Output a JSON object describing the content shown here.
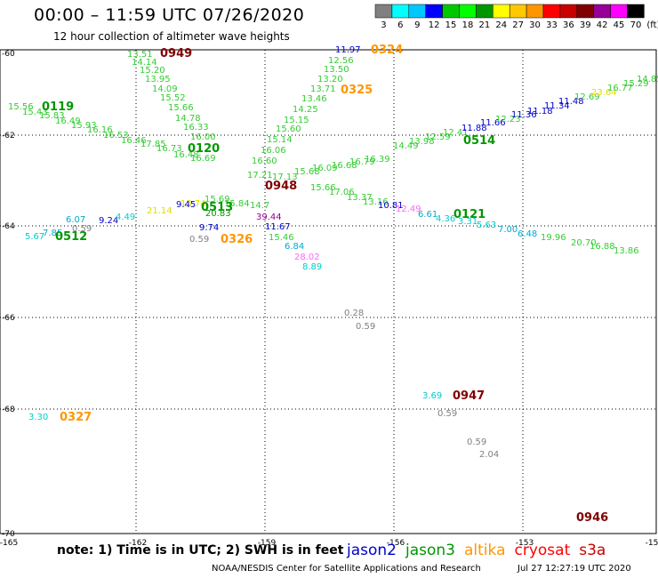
{
  "header": {
    "title": "00:00 – 11:59 UTC 07/26/2020",
    "subtitle": "12 hour collection of altimeter wave heights"
  },
  "colorbar": {
    "unit": "(ft)",
    "labels": [
      "3",
      "6",
      "9",
      "12",
      "15",
      "18",
      "21",
      "24",
      "27",
      "30",
      "33",
      "36",
      "39",
      "42",
      "45",
      "70"
    ],
    "colors": [
      "#808080",
      "#00ffff",
      "#00c8ff",
      "#0000ff",
      "#00c800",
      "#00ff00",
      "#009600",
      "#ffff00",
      "#ffc800",
      "#ff9600",
      "#ff0000",
      "#c80000",
      "#800000",
      "#960096",
      "#ff00ff",
      "#000000"
    ]
  },
  "axes": {
    "lon_ticks": [
      "-165",
      "-162",
      "-159",
      "-156",
      "-153",
      "-15"
    ],
    "lat_ticks": [
      "-60",
      "-62",
      "-64",
      "-66",
      "-68",
      "-70"
    ]
  },
  "footer": {
    "note": "note:  1) Time is in UTC;  2) SWH is in feet",
    "credit": "NOAA/NESDIS Center for Satellite Applications and Research",
    "timestamp": "Jul 27 12:27:19 UTC 2020",
    "missions": [
      {
        "name": "jason2",
        "color": "#0000cc"
      },
      {
        "name": "jason3",
        "color": "#009600"
      },
      {
        "name": "altika",
        "color": "#ff9600"
      },
      {
        "name": "cryosat",
        "color": "#ff0000"
      },
      {
        "name": "s3a",
        "color": "#c80000"
      }
    ]
  },
  "track_times": [
    {
      "text": "0949",
      "color": "#800000"
    },
    {
      "text": "0324",
      "color": "#ff9600"
    },
    {
      "text": "0119",
      "color": "#009600"
    },
    {
      "text": "0325",
      "color": "#ff9600"
    },
    {
      "text": "0120",
      "color": "#009600"
    },
    {
      "text": "0514",
      "color": "#009600"
    },
    {
      "text": "0948",
      "color": "#800000"
    },
    {
      "text": "0513",
      "color": "#009600"
    },
    {
      "text": "0121",
      "color": "#009600"
    },
    {
      "text": "0512",
      "color": "#009600"
    },
    {
      "text": "0326",
      "color": "#ff9600"
    },
    {
      "text": "0947",
      "color": "#800000"
    },
    {
      "text": "0327",
      "color": "#ff9600"
    },
    {
      "text": "0946",
      "color": "#800000"
    }
  ],
  "wave_labels": [
    {
      "text": "13.51",
      "color": "#33cc33"
    },
    {
      "text": "14.14",
      "color": "#33cc33"
    },
    {
      "text": "15.20",
      "color": "#33cc33"
    },
    {
      "text": "13.95",
      "color": "#33cc33"
    },
    {
      "text": "14.09",
      "color": "#33cc33"
    },
    {
      "text": "15.52",
      "color": "#33cc33"
    },
    {
      "text": "15.66",
      "color": "#33cc33"
    },
    {
      "text": "14.78",
      "color": "#33cc33"
    },
    {
      "text": "16.33",
      "color": "#33cc33"
    },
    {
      "text": "16.00",
      "color": "#33cc33"
    },
    {
      "text": "11.97",
      "color": "#0000cc"
    },
    {
      "text": "12.56",
      "color": "#33cc33"
    },
    {
      "text": "13.50",
      "color": "#33cc33"
    },
    {
      "text": "13.20",
      "color": "#33cc33"
    },
    {
      "text": "13.71",
      "color": "#33cc33"
    },
    {
      "text": "13.46",
      "color": "#33cc33"
    },
    {
      "text": "14.25",
      "color": "#33cc33"
    },
    {
      "text": "15.15",
      "color": "#33cc33"
    },
    {
      "text": "15.60",
      "color": "#33cc33"
    },
    {
      "text": "15.14",
      "color": "#33cc33"
    },
    {
      "text": "16.06",
      "color": "#33cc33"
    },
    {
      "text": "16.60",
      "color": "#33cc33"
    },
    {
      "text": "15.56",
      "color": "#33cc33"
    },
    {
      "text": "15.43",
      "color": "#33cc33"
    },
    {
      "text": "15.83",
      "color": "#33cc33"
    },
    {
      "text": "16.49",
      "color": "#33cc33"
    },
    {
      "text": "15.93",
      "color": "#33cc33"
    },
    {
      "text": "16.16",
      "color": "#33cc33"
    },
    {
      "text": "16.53",
      "color": "#33cc33"
    },
    {
      "text": "16.46",
      "color": "#33cc33"
    },
    {
      "text": "17.85",
      "color": "#33cc33"
    },
    {
      "text": "16.73",
      "color": "#33cc33"
    },
    {
      "text": "16.48",
      "color": "#33cc33"
    },
    {
      "text": "16.69",
      "color": "#33cc33"
    },
    {
      "text": "17.21",
      "color": "#33cc33"
    },
    {
      "text": "17.13",
      "color": "#33cc33"
    },
    {
      "text": "15.68",
      "color": "#33cc33"
    },
    {
      "text": "16.09",
      "color": "#33cc33"
    },
    {
      "text": "16.68",
      "color": "#33cc33"
    },
    {
      "text": "16.79",
      "color": "#33cc33"
    },
    {
      "text": "16.39",
      "color": "#33cc33"
    },
    {
      "text": "14.49",
      "color": "#33cc33"
    },
    {
      "text": "13.98",
      "color": "#33cc33"
    },
    {
      "text": "12.59",
      "color": "#33cc33"
    },
    {
      "text": "12.41",
      "color": "#33cc33"
    },
    {
      "text": "11.88",
      "color": "#0000cc"
    },
    {
      "text": "11.66",
      "color": "#0000cc"
    },
    {
      "text": "12.23",
      "color": "#33cc33"
    },
    {
      "text": "11.36",
      "color": "#0000cc"
    },
    {
      "text": "11.18",
      "color": "#0000cc"
    },
    {
      "text": "11.34",
      "color": "#0000cc"
    },
    {
      "text": "11.48",
      "color": "#0000cc"
    },
    {
      "text": "12.69",
      "color": "#33cc33"
    },
    {
      "text": "23.64",
      "color": "#dddd00"
    },
    {
      "text": "16.77",
      "color": "#33cc33"
    },
    {
      "text": "15.29",
      "color": "#33cc33"
    },
    {
      "text": "14.85",
      "color": "#33cc33"
    },
    {
      "text": "15.66",
      "color": "#33cc33"
    },
    {
      "text": "17.06",
      "color": "#33cc33"
    },
    {
      "text": "13.37",
      "color": "#33cc33"
    },
    {
      "text": "13.16",
      "color": "#33cc33"
    },
    {
      "text": "10.81",
      "color": "#0000cc"
    },
    {
      "text": "12.49",
      "color": "#ff66ff"
    },
    {
      "text": "6.61",
      "color": "#00aacc"
    },
    {
      "text": "4.36",
      "color": "#00cccc"
    },
    {
      "text": "3.31",
      "color": "#00cccc"
    },
    {
      "text": "5.63",
      "color": "#00cccc"
    },
    {
      "text": "7.00",
      "color": "#00aacc"
    },
    {
      "text": "6.48",
      "color": "#00aacc"
    },
    {
      "text": "19.96",
      "color": "#33cc33"
    },
    {
      "text": "20.70",
      "color": "#33cc33"
    },
    {
      "text": "16.88",
      "color": "#33cc33"
    },
    {
      "text": "13.86",
      "color": "#33cc33"
    },
    {
      "text": "15.69",
      "color": "#33cc33"
    },
    {
      "text": "15.84",
      "color": "#33cc33"
    },
    {
      "text": "14.7",
      "color": "#33cc33"
    },
    {
      "text": "20.83",
      "color": "#009600"
    },
    {
      "text": "39.44",
      "color": "#960096"
    },
    {
      "text": "11.67",
      "color": "#0000cc"
    },
    {
      "text": "13.74",
      "color": "#dddd00"
    },
    {
      "text": "9.24",
      "color": "#0000cc"
    },
    {
      "text": "4.49",
      "color": "#00cccc"
    },
    {
      "text": "21.14",
      "color": "#dddd00"
    },
    {
      "text": "9.45",
      "color": "#0000cc"
    },
    {
      "text": "9.74",
      "color": "#0000cc"
    },
    {
      "text": "0.59",
      "color": "#808080"
    },
    {
      "text": "15.46",
      "color": "#33cc33"
    },
    {
      "text": "6.84",
      "color": "#00aacc"
    },
    {
      "text": "28.02",
      "color": "#ff66ff"
    },
    {
      "text": "8.89",
      "color": "#00cccc"
    },
    {
      "text": "6.07",
      "color": "#00aacc"
    },
    {
      "text": "5.67",
      "color": "#00cccc"
    },
    {
      "text": "7.85",
      "color": "#00aacc"
    },
    {
      "text": "0.59",
      "color": "#808080"
    },
    {
      "text": "0.28",
      "color": "#808080"
    },
    {
      "text": "0.59",
      "color": "#808080"
    },
    {
      "text": "3.69",
      "color": "#00cccc"
    },
    {
      "text": "0.59",
      "color": "#808080"
    },
    {
      "text": "3.30",
      "color": "#00cccc"
    },
    {
      "text": "0.59",
      "color": "#808080"
    },
    {
      "text": "2.04",
      "color": "#808080"
    }
  ]
}
